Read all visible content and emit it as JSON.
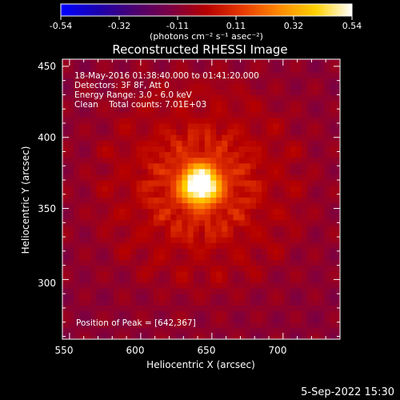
{
  "colorbar": {
    "tick_labels": [
      "-0.54",
      "-0.32",
      "-0.11",
      "0.11",
      "0.32",
      "0.54"
    ],
    "unit_label": "(photons cm⁻² s⁻¹ asec⁻²)",
    "range": [
      -0.54,
      0.54
    ],
    "stops": [
      "#0000ff",
      "#1a00b0",
      "#4a0070",
      "#7a0044",
      "#b50000",
      "#e83a00",
      "#ff8a00",
      "#ffd000",
      "#ffffff"
    ]
  },
  "chart_data": {
    "type": "heatmap",
    "title": "Reconstructed RHESSI Image",
    "xlabel": "Heliocentric X (arcsec)",
    "ylabel": "Heliocentric Y (arcsec)",
    "xlim": [
      545,
      740
    ],
    "ylim": [
      258,
      455
    ],
    "x_ticks": [
      550,
      600,
      650,
      700
    ],
    "y_ticks": [
      300,
      350,
      400,
      450
    ],
    "x_tick_labels": [
      "550",
      "600",
      "650",
      "700"
    ],
    "y_tick_labels": [
      "300",
      "350",
      "400",
      "450"
    ],
    "peak": [
      642,
      367
    ],
    "peak_value": 0.54,
    "background_value": -0.1,
    "annotations": [
      "18-May-2016 01:38:40.000 to 01:41:20.000",
      "Detectors: 3F 8F, Att 0",
      "Energy Range: 3.0 - 6.0 keV",
      "Clean    Total counts: 7.01E+03"
    ],
    "peak_label": "Position of Peak = [642,367]"
  },
  "footer": {
    "date": "5-Sep-2022 15:30"
  }
}
